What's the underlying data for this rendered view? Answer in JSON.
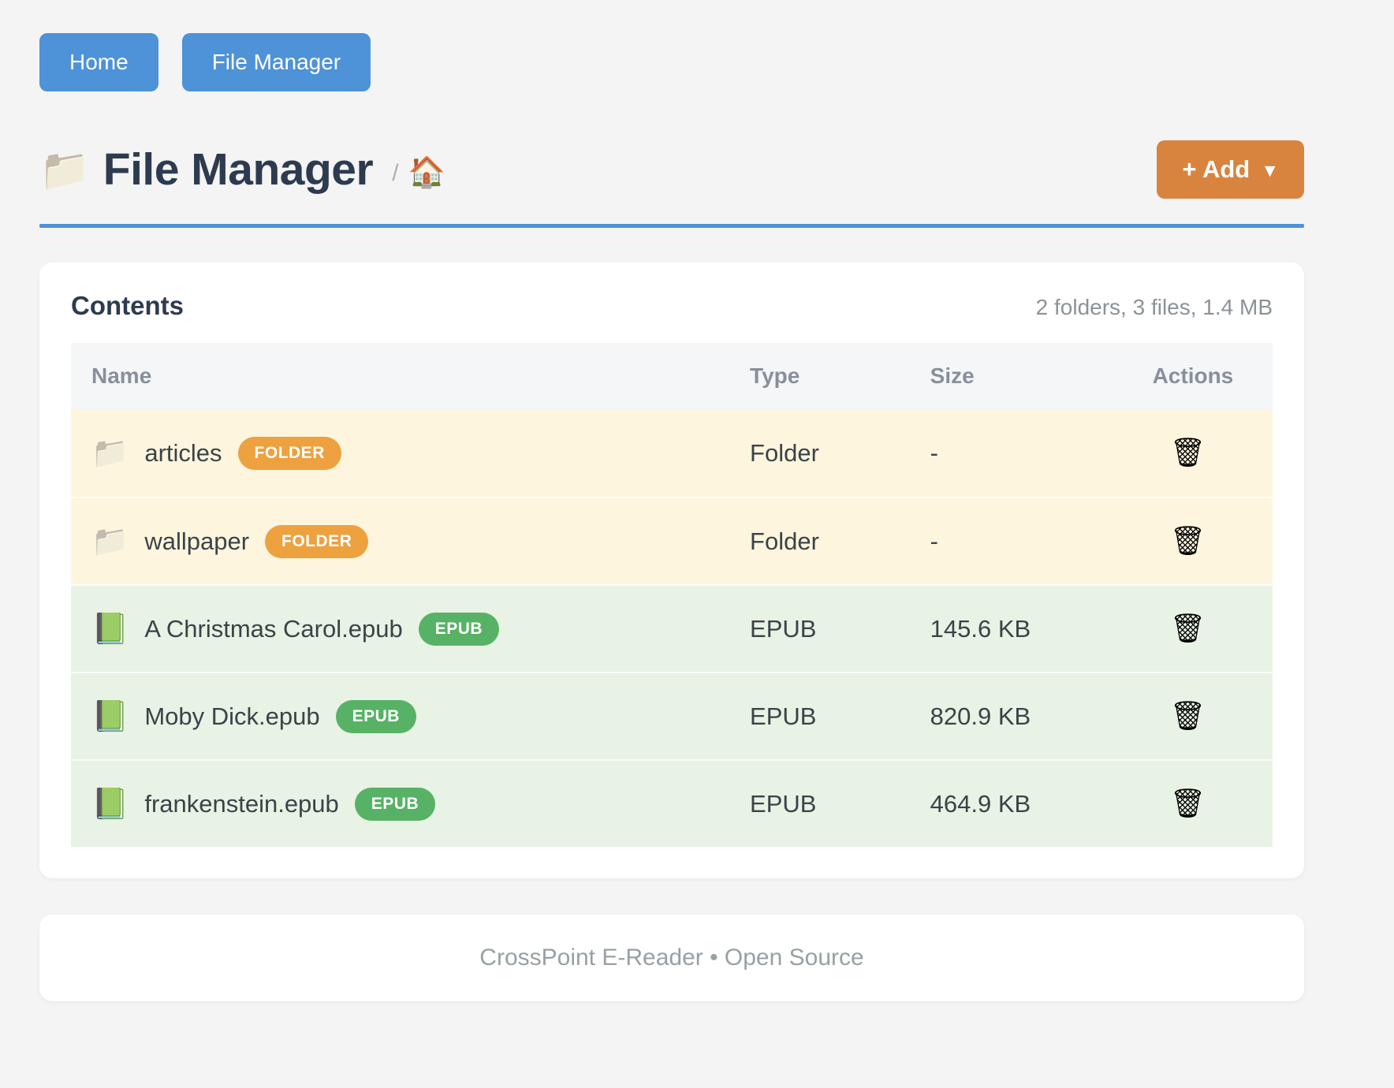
{
  "nav": {
    "items": [
      {
        "label": "Home"
      },
      {
        "label": "File Manager"
      }
    ]
  },
  "header": {
    "folder_icon": "📁",
    "title": "File Manager",
    "breadcrumb_separator": "/",
    "breadcrumb_home_icon": "🏠",
    "add_button": {
      "label": "+ Add",
      "caret": "▼"
    }
  },
  "contents": {
    "title": "Contents",
    "summary": "2 folders, 3 files, 1.4 MB",
    "columns": [
      "Name",
      "Type",
      "Size",
      "Actions"
    ],
    "delete_icon": "🗑",
    "rows": [
      {
        "kind": "folder",
        "icon_glyph": "📁",
        "name": "articles",
        "badge": "FOLDER",
        "type": "Folder",
        "size": "-"
      },
      {
        "kind": "folder",
        "icon_glyph": "📁",
        "name": "wallpaper",
        "badge": "FOLDER",
        "type": "Folder",
        "size": "-"
      },
      {
        "kind": "epub",
        "icon_glyph": "📗",
        "name": "A Christmas Carol.epub",
        "badge": "EPUB",
        "type": "EPUB",
        "size": "145.6 KB"
      },
      {
        "kind": "epub",
        "icon_glyph": "📗",
        "name": "Moby Dick.epub",
        "badge": "EPUB",
        "type": "EPUB",
        "size": "820.9 KB"
      },
      {
        "kind": "epub",
        "icon_glyph": "📗",
        "name": "frankenstein.epub",
        "badge": "EPUB",
        "type": "EPUB",
        "size": "464.9 KB"
      }
    ]
  },
  "footer": {
    "text": "CrossPoint E-Reader • Open Source"
  },
  "colors": {
    "nav_button": "#4e92d8",
    "accent_blue": "#4e92d8",
    "add_button": "#d9843e",
    "folder_badge": "#eda13f",
    "epub_badge": "#57b266",
    "folder_row_bg": "#fdf5dd",
    "epub_row_bg": "#e8f2e5"
  }
}
